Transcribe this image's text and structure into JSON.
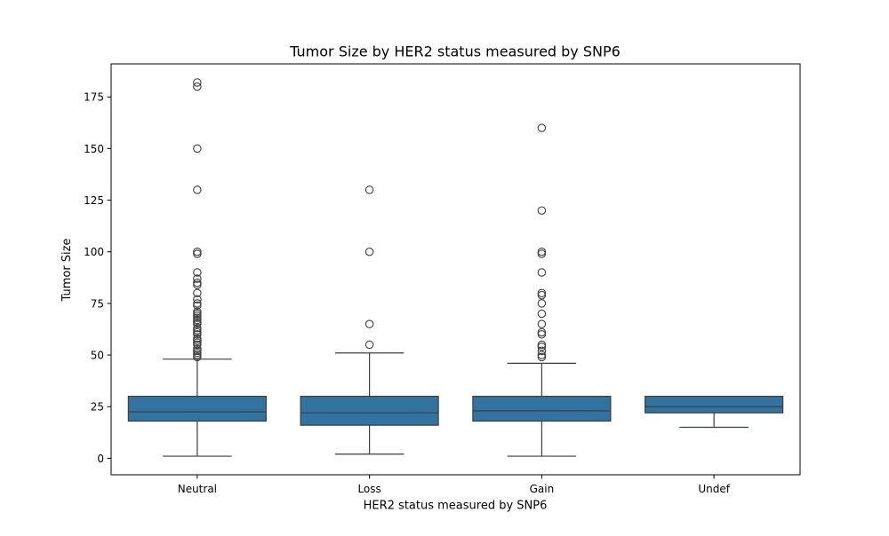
{
  "chart_data": {
    "type": "box",
    "title": "Tumor Size by HER2 status measured by SNP6",
    "xlabel": "HER2 status measured by SNP6",
    "ylabel": "Tumor Size",
    "ylim": [
      -8,
      191
    ],
    "yticks": [
      0,
      25,
      50,
      75,
      100,
      125,
      150,
      175
    ],
    "grid": false,
    "box_color": "#3274a1",
    "line_color": "#3d3d3d",
    "categories": [
      "Neutral",
      "Loss",
      "Gain",
      "Undef"
    ],
    "boxes": [
      {
        "category": "Neutral",
        "whisker_low": 1,
        "q1": 18,
        "median": 22.5,
        "q3": 30,
        "whisker_high": 48,
        "outliers": [
          49,
          50,
          51,
          52,
          53,
          55,
          56,
          57,
          58,
          60,
          61,
          62,
          63,
          65,
          66,
          67,
          68,
          69,
          70,
          71,
          74,
          75,
          77,
          80,
          84,
          85,
          87,
          90,
          99,
          100,
          130,
          150,
          180,
          182
        ]
      },
      {
        "category": "Loss",
        "whisker_low": 2,
        "q1": 16,
        "median": 22,
        "q3": 30,
        "whisker_high": 51,
        "outliers": [
          55,
          65,
          100,
          130
        ]
      },
      {
        "category": "Gain",
        "whisker_low": 1,
        "q1": 18,
        "median": 23,
        "q3": 30,
        "whisker_high": 46,
        "outliers": [
          49,
          50,
          52,
          54,
          55,
          60,
          61,
          65,
          70,
          75,
          79,
          80,
          90,
          99,
          100,
          120,
          160
        ]
      },
      {
        "category": "Undef",
        "whisker_low": 15,
        "q1": 22,
        "median": 25,
        "q3": 30,
        "whisker_high": 30,
        "outliers": []
      }
    ]
  }
}
